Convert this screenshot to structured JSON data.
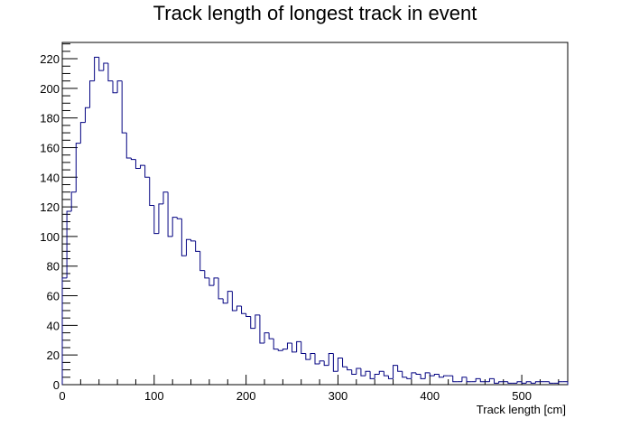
{
  "chart_data": {
    "type": "bar",
    "subtype": "step-histogram",
    "title": "Track length of longest track in event",
    "xlabel": "Track length [cm]",
    "ylabel": "",
    "xlim": [
      0,
      550
    ],
    "ylim": [
      0,
      231
    ],
    "xticks": [
      0,
      100,
      200,
      300,
      400,
      500
    ],
    "yticks": [
      0,
      20,
      40,
      60,
      80,
      100,
      120,
      140,
      160,
      180,
      200,
      220
    ],
    "bin_width": 5,
    "line_color": "#000080",
    "grid": false,
    "series": [
      {
        "values": [
          72,
          117,
          130,
          163,
          177,
          187,
          205,
          221,
          212,
          217,
          205,
          197,
          205,
          170,
          153,
          152,
          146,
          148,
          140,
          121,
          102,
          122,
          130,
          100,
          113,
          112,
          87,
          98,
          97,
          90,
          77,
          72,
          67,
          72,
          58,
          55,
          63,
          50,
          53,
          48,
          46,
          38,
          47,
          28,
          35,
          31,
          24,
          23,
          24,
          28,
          22,
          29,
          21,
          17,
          21,
          14,
          16,
          13,
          21,
          9,
          18,
          12,
          10,
          7,
          11,
          6,
          9,
          4,
          7,
          9,
          6,
          4,
          13,
          9,
          5,
          4,
          8,
          7,
          4,
          8,
          6,
          7,
          5,
          6,
          6,
          2,
          2,
          5,
          2,
          2,
          4,
          2,
          2,
          4,
          1,
          2,
          2,
          1,
          1,
          2,
          1,
          2,
          1,
          2,
          2,
          2,
          1,
          1,
          2,
          2
        ]
      }
    ]
  }
}
